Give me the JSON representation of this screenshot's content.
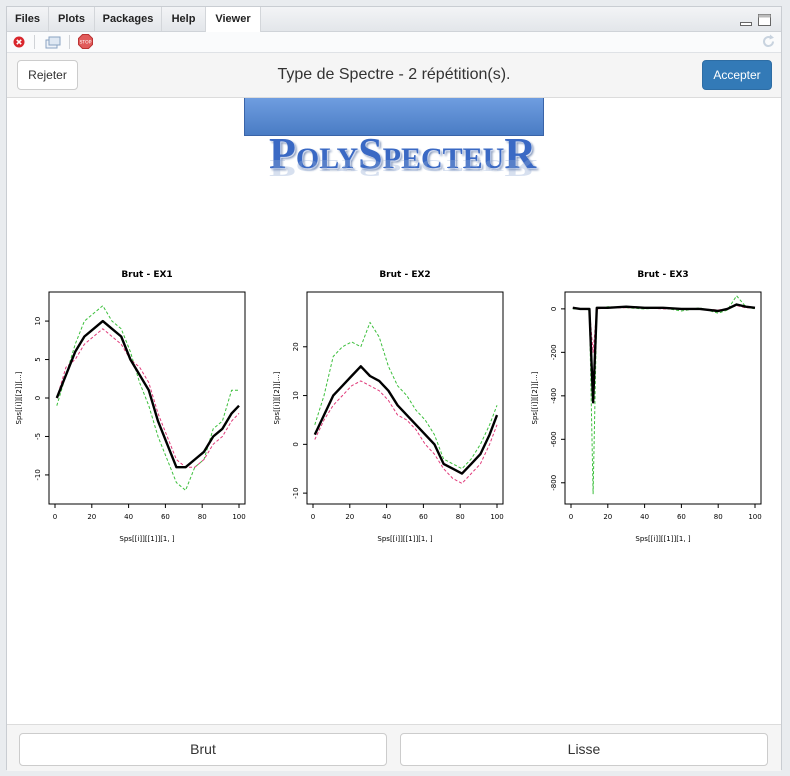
{
  "tabs": [
    {
      "label": "Files",
      "active": false
    },
    {
      "label": "Plots",
      "active": false
    },
    {
      "label": "Packages",
      "active": false
    },
    {
      "label": "Help",
      "active": false
    },
    {
      "label": "Viewer",
      "active": true
    }
  ],
  "toolbar": {
    "icons": [
      "clear-icon",
      "export-icon",
      "stop-icon",
      "refresh-icon"
    ]
  },
  "gadget": {
    "title": "Type de Spectre - 2 répétition(s).",
    "reject_label": "Rejeter",
    "accept_label": "Accepter",
    "accent_color": "#337ab7"
  },
  "logo": {
    "text": "PolySpecteuR"
  },
  "chart_data": [
    {
      "type": "line",
      "title": "Brut - EX1",
      "xlabel": "Sps[[i]][[1]][1, ]",
      "ylabel": "Sps[[i]][[2]][...]",
      "xlim": [
        0,
        100
      ],
      "ylim": [
        -13,
        13
      ],
      "xticks": [
        0,
        20,
        40,
        60,
        80,
        100
      ],
      "yticks": [
        -10,
        -5,
        0,
        5,
        10
      ],
      "x": [
        1,
        6,
        11,
        16,
        21,
        26,
        31,
        36,
        41,
        46,
        51,
        56,
        61,
        66,
        71,
        76,
        81,
        86,
        91,
        96,
        100
      ],
      "series": [
        {
          "line_style": "solid",
          "color": "#000000",
          "values": [
            0,
            3,
            6,
            8,
            9,
            10,
            9,
            8,
            5,
            3,
            1,
            -3,
            -6,
            -9,
            -9,
            -8,
            -7,
            -5,
            -4,
            -2,
            -1
          ]
        },
        {
          "line_style": "dashed",
          "color": "#3cbf3c",
          "values": [
            -1,
            3,
            7,
            10,
            11,
            12,
            10,
            9,
            6,
            2,
            -1,
            -5,
            -8,
            -11,
            -12,
            -9,
            -8,
            -4,
            -3,
            1,
            1
          ]
        },
        {
          "line_style": "dashed",
          "color": "#e03a7a",
          "values": [
            0,
            4,
            5,
            7,
            8,
            9,
            8,
            7,
            5,
            4,
            2,
            -2,
            -5,
            -8,
            -9,
            -9,
            -8,
            -6,
            -5,
            -3,
            -2
          ]
        }
      ]
    },
    {
      "type": "line",
      "title": "Brut - EX2",
      "xlabel": "Sps[[i]][[1]][1, ]",
      "ylabel": "Sps[[i]][[2]][...]",
      "xlim": [
        0,
        100
      ],
      "ylim": [
        -11,
        30
      ],
      "xticks": [
        0,
        20,
        40,
        60,
        80,
        100
      ],
      "yticks": [
        -10,
        0,
        10,
        20
      ],
      "x": [
        1,
        6,
        11,
        16,
        21,
        26,
        31,
        36,
        41,
        46,
        51,
        56,
        61,
        66,
        71,
        76,
        81,
        86,
        91,
        96,
        100
      ],
      "series": [
        {
          "line_style": "solid",
          "color": "#000000",
          "values": [
            2,
            6,
            10,
            12,
            14,
            16,
            14,
            13,
            11,
            8,
            6,
            4,
            2,
            0,
            -4,
            -5,
            -6,
            -4,
            -2,
            2,
            6
          ]
        },
        {
          "line_style": "dashed",
          "color": "#3cbf3c",
          "values": [
            4,
            10,
            18,
            20,
            21,
            20,
            25,
            22,
            16,
            12,
            10,
            7,
            5,
            2,
            -3,
            -4,
            -5,
            -3,
            0,
            4,
            8
          ]
        },
        {
          "line_style": "dashed",
          "color": "#e03a7a",
          "values": [
            1,
            5,
            8,
            10,
            12,
            13,
            12,
            11,
            9,
            6,
            5,
            3,
            0,
            -2,
            -5,
            -7,
            -8,
            -6,
            -4,
            0,
            4
          ]
        }
      ]
    },
    {
      "type": "line",
      "title": "Brut - EX3",
      "xlabel": "Sps[[i]][[1]][1, ]",
      "ylabel": "Sps[[i]][[2]][...]",
      "xlim": [
        0,
        100
      ],
      "ylim": [
        -870,
        50
      ],
      "xticks": [
        0,
        20,
        40,
        60,
        80,
        100
      ],
      "yticks": [
        -800,
        -600,
        -400,
        -200,
        0
      ],
      "x": [
        1,
        5,
        10,
        12,
        14,
        20,
        30,
        40,
        50,
        60,
        70,
        80,
        85,
        90,
        95,
        100
      ],
      "series": [
        {
          "line_style": "solid",
          "color": "#000000",
          "values": [
            5,
            0,
            0,
            -430,
            5,
            5,
            10,
            5,
            5,
            0,
            0,
            -10,
            0,
            20,
            10,
            5
          ]
        },
        {
          "line_style": "dashed",
          "color": "#3cbf3c",
          "values": [
            0,
            0,
            -5,
            -850,
            0,
            10,
            5,
            0,
            5,
            -10,
            5,
            -20,
            -5,
            60,
            10,
            0
          ]
        },
        {
          "line_style": "dashed",
          "color": "#e03a7a",
          "values": [
            5,
            0,
            0,
            -200,
            0,
            5,
            5,
            5,
            0,
            0,
            0,
            -5,
            0,
            15,
            5,
            5
          ]
        }
      ]
    }
  ],
  "footer": {
    "brut_label": "Brut",
    "lisse_label": "Lisse"
  }
}
